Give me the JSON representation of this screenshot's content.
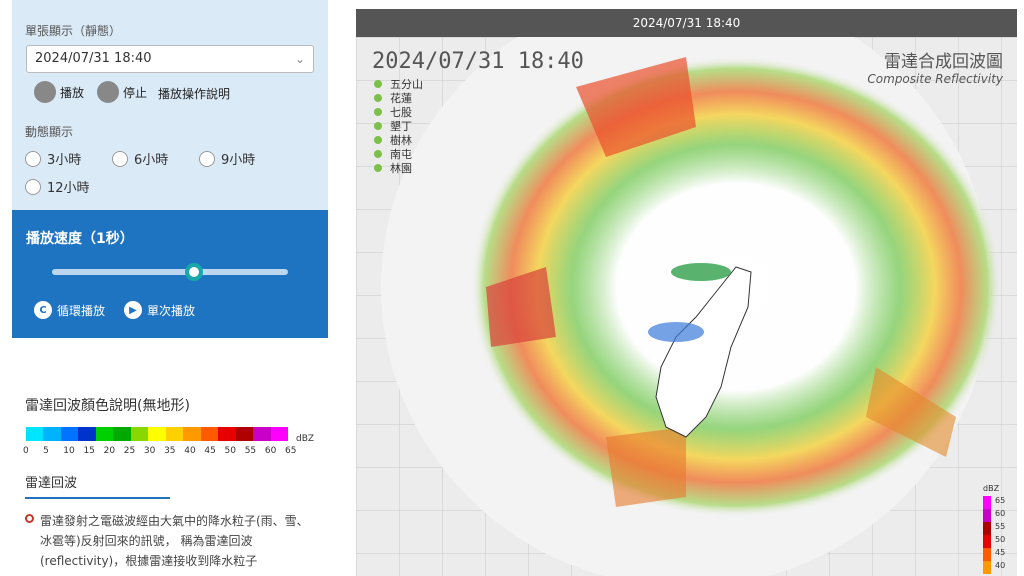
{
  "single": {
    "label": "單張顯示（靜態）",
    "value": "2024/07/31 18:40"
  },
  "controls": {
    "play": "播放",
    "stop": "停止",
    "help": "播放操作說明"
  },
  "dynamic": {
    "label": "動態顯示",
    "options": [
      "3小時",
      "6小時",
      "9小時",
      "12小時"
    ]
  },
  "speed": {
    "title": "播放速度（1秒）",
    "loop": "循環播放",
    "once": "單次播放",
    "level": 0.6
  },
  "legend": {
    "title": "雷達回波顏色說明(無地形)",
    "unit": "dBZ",
    "ticks": [
      "0",
      "5",
      "10",
      "15",
      "20",
      "25",
      "30",
      "35",
      "40",
      "45",
      "50",
      "55",
      "60",
      "65"
    ],
    "colors": [
      "#00e5ff",
      "#00b3ff",
      "#0073ff",
      "#0033cc",
      "#00d000",
      "#00aa00",
      "#88d800",
      "#ffff00",
      "#ffd000",
      "#ff9900",
      "#ff5a00",
      "#e80000",
      "#b00000",
      "#c800c8",
      "#ff00ff"
    ]
  },
  "section": {
    "title": "雷達回波",
    "text": "雷達發射之電磁波經由大氣中的降水粒子(雨、雪、冰雹等)反射回來的訊號， 稱為雷達回波(reflectivity)，根據雷達接收到降水粒子"
  },
  "radar": {
    "header": "2024/07/31 18:40",
    "datetime": "2024/07/31  18:40",
    "brand_zh": "雷達合成回波圖",
    "brand_en": "Composite Reflectivity",
    "stations": [
      "五分山",
      "花蓮",
      "七股",
      "墾丁",
      "樹林",
      "南屯",
      "林園"
    ],
    "mini_unit": "dBZ",
    "mini_ticks": [
      "65",
      "60",
      "55",
      "50",
      "45",
      "40"
    ]
  }
}
